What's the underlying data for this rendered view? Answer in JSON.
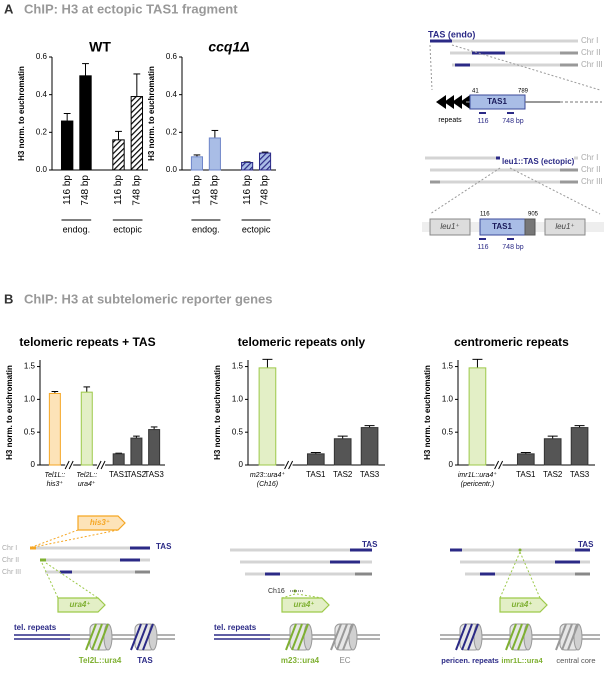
{
  "panel_a": {
    "letter": "A",
    "title": "ChIP: H3 at ectopic TAS1 fragment",
    "endo_diagram": {
      "label": "TAS (endo)",
      "chromosomes": [
        "Chr I",
        "Chr II",
        "Chr III"
      ],
      "start": "41",
      "end": "789",
      "element": "TAS1",
      "repeats": "repeats",
      "primers": [
        "116",
        "748 bp"
      ]
    },
    "ectopic_diagram": {
      "label": "leu1::TAS (ectopic)",
      "chromosomes": [
        "Chr I",
        "Chr II",
        "Chr III"
      ],
      "start": "116",
      "end": "905",
      "element": "TAS1",
      "flanks": [
        "leu1⁺",
        "leu1⁺"
      ],
      "primers": [
        "116",
        "748 bp"
      ]
    }
  },
  "panel_b": {
    "letter": "B",
    "title": "ChIP: H3 at subtelomeric reporter genes",
    "diagrams": [
      {
        "reporters": [
          "his3⁺",
          "ura4⁺"
        ],
        "chromosomes": [
          "Chr I",
          "Chr II",
          "Chr III"
        ],
        "end_label": "TAS",
        "repeats": "tel. repeats",
        "nucleosomes": [
          "Tel2L::ura4",
          "TAS"
        ]
      },
      {
        "reporters": [
          "ura4⁺"
        ],
        "end_label": "TAS",
        "locus": "Ch16",
        "repeats": "tel. repeats",
        "nucleosomes": [
          "m23::ura4",
          "EC"
        ]
      },
      {
        "reporters": [
          "ura4⁺"
        ],
        "end_label": "TAS",
        "nucleosomes": [
          "pericen. repeats",
          "imr1L::ura4",
          "central core"
        ]
      }
    ]
  },
  "chart_data": [
    {
      "type": "bar",
      "title": "WT",
      "y_label": "H3 norm. to euchromatin",
      "categories": [
        "116 bp",
        "748 bp",
        "116 bp",
        "748 bp"
      ],
      "group_labels": [
        "endog.",
        "ectopic"
      ],
      "values": [
        0.26,
        0.5,
        0.16,
        0.39
      ],
      "errors": [
        0.04,
        0.065,
        0.045,
        0.12
      ],
      "colors": [
        "#000000",
        "#000000",
        "#ffffff",
        "#ffffff"
      ],
      "edge_colors": [
        "#000000",
        "#000000",
        "#000000",
        "#000000"
      ],
      "patterns": [
        "solid",
        "solid",
        "hatched",
        "hatched"
      ],
      "rotate_labels": true,
      "ylim": [
        0,
        0.6
      ],
      "yticks": [
        {
          "value": 0,
          "label": "0.0"
        },
        0.2,
        0.4,
        0.6
      ]
    },
    {
      "type": "bar",
      "title": "ccq1Δ",
      "y_label": "H3 norm. to euchromatin",
      "categories": [
        "116 bp",
        "748 bp",
        "116 bp",
        "748 bp"
      ],
      "group_labels": [
        "endog.",
        "ectopic"
      ],
      "values": [
        0.07,
        0.17,
        0.04,
        0.09
      ],
      "errors": [
        0.01,
        0.04,
        0.003,
        0.005
      ],
      "colors": [
        "#a9bde6",
        "#a9bde6",
        "#a9bde6",
        "#a9bde6"
      ],
      "edge_colors": [
        "#6f86c9",
        "#6f86c9",
        "#2b2a86",
        "#2b2a86"
      ],
      "patterns": [
        "solid",
        "solid",
        "hatched",
        "hatched"
      ],
      "rotate_labels": true,
      "ylim": [
        0,
        0.6
      ],
      "yticks": [
        {
          "value": 0,
          "label": "0.0"
        },
        0.2,
        0.4,
        0.6
      ]
    },
    {
      "type": "bar",
      "title": "telomeric repeats + TAS",
      "y_label": "H3 norm. to euchromatin",
      "categories": [
        "Tel1L::\nhis3⁺",
        "Tel2L::\nura4⁺",
        "TAS1",
        "TAS2",
        "TAS3"
      ],
      "values": [
        1.09,
        1.11,
        0.17,
        0.41,
        0.54
      ],
      "errors": [
        0.03,
        0.08,
        0.01,
        0.03,
        0.04
      ],
      "colors": [
        "#fde3b8",
        "#e3efc6",
        "#555555",
        "#555555",
        "#555555"
      ],
      "edge_colors": [
        "#f5a623",
        "#9dc94a",
        "#333333",
        "#333333",
        "#333333"
      ],
      "patterns": [
        "solid",
        "solid",
        "solid",
        "solid",
        "solid"
      ],
      "axis_break": true,
      "ylim": [
        0,
        1.6
      ],
      "yticks": [
        0,
        0.5,
        {
          "value": 1,
          "label": "1.0"
        },
        1.5
      ]
    },
    {
      "type": "bar",
      "title": "telomeric repeats only",
      "y_label": "H3 norm. to euchromatin",
      "categories": [
        "m23::ura4⁺\n(Ch16)",
        "TAS1",
        "TAS2",
        "TAS3"
      ],
      "values": [
        1.48,
        0.17,
        0.4,
        0.57
      ],
      "errors": [
        0.13,
        0.02,
        0.04,
        0.03
      ],
      "colors": [
        "#e3efc6",
        "#555555",
        "#555555",
        "#555555"
      ],
      "edge_colors": [
        "#9dc94a",
        "#333333",
        "#333333",
        "#333333"
      ],
      "patterns": [
        "solid",
        "solid",
        "solid",
        "solid"
      ],
      "axis_break": true,
      "ylim": [
        0,
        1.6
      ],
      "yticks": [
        0,
        0.5,
        {
          "value": 1,
          "label": "1.0"
        },
        1.5
      ]
    },
    {
      "type": "bar",
      "title": "centromeric repeats",
      "y_label": "H3 norm. to euchromatin",
      "categories": [
        "imr1L::ura4⁺\n(pericentr.)",
        "TAS1",
        "TAS2",
        "TAS3"
      ],
      "values": [
        1.48,
        0.17,
        0.4,
        0.57
      ],
      "errors": [
        0.13,
        0.02,
        0.04,
        0.03
      ],
      "colors": [
        "#e3efc6",
        "#555555",
        "#555555",
        "#555555"
      ],
      "edge_colors": [
        "#9dc94a",
        "#333333",
        "#333333",
        "#333333"
      ],
      "patterns": [
        "solid",
        "solid",
        "solid",
        "solid"
      ],
      "axis_break": true,
      "ylim": [
        0,
        1.6
      ],
      "yticks": [
        0,
        0.5,
        {
          "value": 1,
          "label": "1.0"
        },
        1.5
      ]
    }
  ]
}
